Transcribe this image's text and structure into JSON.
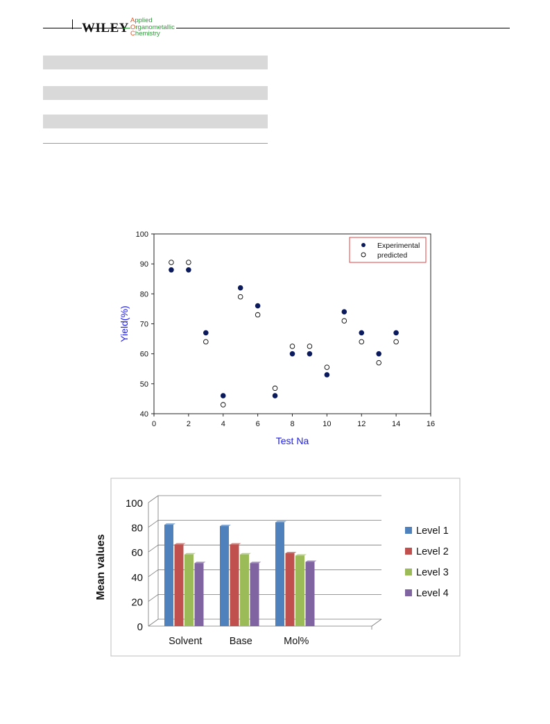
{
  "header": {
    "publisher": "WILEY",
    "journal_lines": [
      "Applied",
      "Organometallic",
      "Chemistry"
    ],
    "colors": {
      "journal_text": "#2e9a3a",
      "journal_caps": "#e0531f"
    }
  },
  "table": {
    "stripe_color": "#d9d9d9",
    "rows_shaded": 3
  },
  "chart_data": [
    {
      "type": "scatter",
      "title": "",
      "xlabel": "Test Na",
      "ylabel": "Yield(%)",
      "xlim": [
        0,
        16
      ],
      "ylim": [
        40,
        100
      ],
      "xticks": [
        0,
        2,
        4,
        6,
        8,
        10,
        12,
        14,
        16
      ],
      "yticks": [
        40,
        50,
        60,
        70,
        80,
        90,
        100
      ],
      "legend_position": "top-right",
      "label_color": "#1a1aff",
      "series": [
        {
          "name": "Experimental",
          "marker": "filled-circle",
          "color": "#0b1a5c",
          "x": [
            1,
            2,
            3,
            4,
            5,
            6,
            7,
            8,
            9,
            10,
            11,
            12,
            13,
            14
          ],
          "y": [
            88,
            88,
            67,
            46,
            82,
            76,
            46,
            60,
            60,
            53,
            74,
            67,
            60,
            67
          ]
        },
        {
          "name": "predicted",
          "marker": "open-circle",
          "color": "#000000",
          "x": [
            1,
            2,
            3,
            4,
            5,
            6,
            7,
            8,
            9,
            10,
            11,
            12,
            13,
            14
          ],
          "y": [
            90.5,
            90.5,
            64,
            43,
            79,
            73,
            48.5,
            62.5,
            62.5,
            55.5,
            71,
            64,
            57,
            64
          ]
        }
      ]
    },
    {
      "type": "bar",
      "title": "",
      "xlabel": "",
      "ylabel": "Mean values",
      "ylim": [
        0,
        100
      ],
      "yticks": [
        0,
        20,
        40,
        60,
        80,
        100
      ],
      "legend_position": "right",
      "categories": [
        "Solvent",
        "Base",
        "Mol%"
      ],
      "series": [
        {
          "name": "Level 1",
          "color": "#4f81bd",
          "values": [
            82,
            81,
            84
          ]
        },
        {
          "name": "Level 2",
          "color": "#c0504d",
          "values": [
            66,
            66,
            59
          ]
        },
        {
          "name": "Level 3",
          "color": "#9bbb59",
          "values": [
            58,
            58,
            57
          ]
        },
        {
          "name": "Level 4",
          "color": "#8064a2",
          "values": [
            51,
            51,
            52
          ]
        }
      ]
    }
  ]
}
